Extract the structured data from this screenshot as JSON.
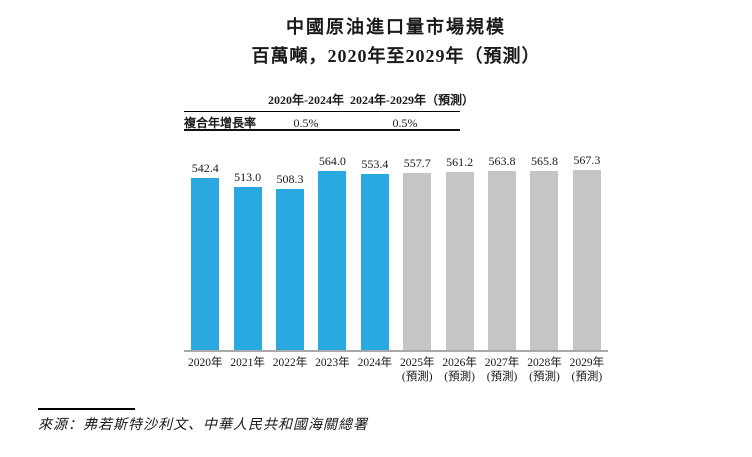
{
  "title": "中國原油進口量市場規模",
  "subtitle": "百萬噸，2020年至2029年（預測）",
  "cagr_table": {
    "row_label": "複合年增長率",
    "col1_header": "2020年-2024年",
    "col2_header": "2024年-2029年（預測）",
    "col1_value": "0.5%",
    "col2_value": "0.5%"
  },
  "source": "來源：弗若斯特沙利文、中華人民共和國海關總署",
  "colors": {
    "actual_bar": "#29a9e0",
    "forecast_bar": "#c5c5c5",
    "axis": "#a9a9a9"
  },
  "chart_data": {
    "type": "bar",
    "title": "中國原油進口量市場規模",
    "subtitle": "百萬噸，2020年至2029年（預測）",
    "unit": "百萬噸",
    "categories": [
      "2020年",
      "2021年",
      "2022年",
      "2023年",
      "2024年",
      "2025年",
      "2026年",
      "2027年",
      "2028年",
      "2029年"
    ],
    "values": [
      542.4,
      513.0,
      508.3,
      564.0,
      553.4,
      557.7,
      561.2,
      563.8,
      565.8,
      567.3
    ],
    "value_labels": [
      "542.4",
      "513.0",
      "508.3",
      "564.0",
      "553.4",
      "557.7",
      "561.2",
      "563.8",
      "565.8",
      "567.3"
    ],
    "forecast_flags": [
      false,
      false,
      false,
      false,
      false,
      true,
      true,
      true,
      true,
      true
    ],
    "forecast_suffix": "(預測)",
    "series_colors": {
      "actual": "#29a9e0",
      "forecast": "#c5c5c5"
    },
    "ylim": [
      0,
      600
    ],
    "grid": false,
    "legend": "none",
    "cagr": {
      "2020-2024": "0.5%",
      "2024-2029": "0.5%"
    }
  }
}
